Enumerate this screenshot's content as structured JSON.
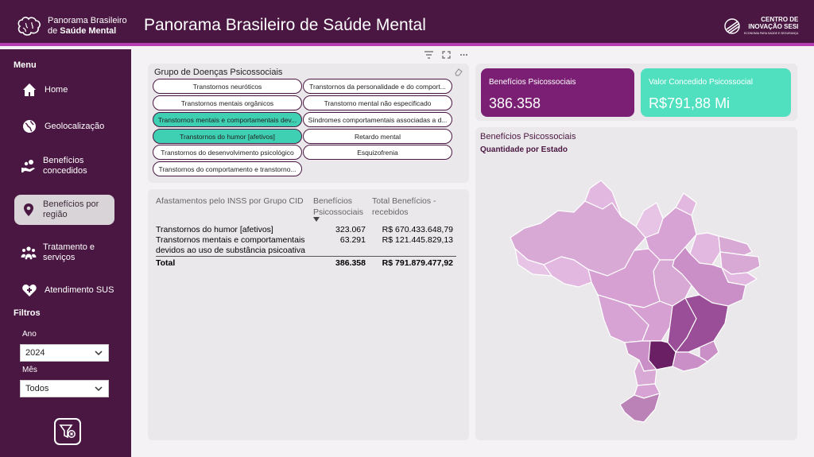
{
  "header": {
    "logo_line1": "Panorama Brasileiro",
    "logo_line2_prefix": "de ",
    "logo_line2_bold": "Saúde Mental",
    "title": "Panorama Brasileiro de Saúde Mental",
    "partner_line1": "CENTRO DE",
    "partner_line2": "INOVAÇÃO SESI",
    "partner_line3": "ECONOMIA PARA SAÚDE E SEGURANÇA"
  },
  "sidebar": {
    "menu_heading": "Menu",
    "items": [
      {
        "label": "Home",
        "icon": "home-icon"
      },
      {
        "label": "Geolocalização",
        "icon": "globe-icon"
      },
      {
        "label": "Benefícios concedidos",
        "icon": "hand-coins-icon"
      },
      {
        "label": "Benefícios por região",
        "icon": "location-pin-icon",
        "active": true
      },
      {
        "label": "Tratamento e serviços",
        "icon": "people-icon"
      },
      {
        "label": "Atendimento SUS",
        "icon": "heart-plus-icon"
      }
    ],
    "filters_heading": "Filtros",
    "ano_label": "Ano",
    "ano_value": "2024",
    "mes_label": "Mês",
    "mes_value": "Todos"
  },
  "slicer": {
    "title": "Grupo de Doenças Psicossociais",
    "options": [
      {
        "label": "Transtornos neuróticos",
        "selected": false
      },
      {
        "label": "Transtornos da personalidade e do comport...",
        "selected": false
      },
      {
        "label": "Transtornos mentais orgânicos",
        "selected": false
      },
      {
        "label": "Transtorno mental não especificado",
        "selected": false
      },
      {
        "label": "Transtornos mentais e comportamentais dev...",
        "selected": true
      },
      {
        "label": "Síndromes comportamentais associadas a d...",
        "selected": false
      },
      {
        "label": "Transtornos do humor [afetivos]",
        "selected": true
      },
      {
        "label": "Retardo mental",
        "selected": false
      },
      {
        "label": "Transtornos do desenvolvimento psicológico",
        "selected": false
      },
      {
        "label": "Esquizofrenia",
        "selected": false
      },
      {
        "label": "Transtornos do comportamento e transtorno...",
        "selected": false
      }
    ]
  },
  "table": {
    "headers": [
      "Afastamentos pelo INSS por Grupo CID",
      "Benefícios Psicossociais",
      "Total Benefícios - recebidos"
    ],
    "rows": [
      {
        "group": "Transtornos do humor [afetivos]",
        "beneficios": "323.067",
        "total": "R$ 670.433.648,79"
      },
      {
        "group": "Transtornos mentais e comportamentais devidos ao uso de substância psicoativa",
        "beneficios": "63.291",
        "total": "R$ 121.445.829,13"
      }
    ],
    "total_label": "Total",
    "total_beneficios": "386.358",
    "total_recebidos": "R$ 791.879.477,92"
  },
  "kpis": {
    "beneficios_label": "Benefícios Psicossociais",
    "beneficios_value": "386.358",
    "valor_label": "Valor Concedido Psicossocial",
    "valor_value": "R$791,88 Mi"
  },
  "map": {
    "title": "Benefícios Psicossociais",
    "subtitle": "Quantidade por Estado"
  },
  "colors": {
    "primary": "#4a1742",
    "kpi_purple": "#7a1f73",
    "kpi_teal": "#50e0c0",
    "selected_chip": "#3fcfb2"
  }
}
